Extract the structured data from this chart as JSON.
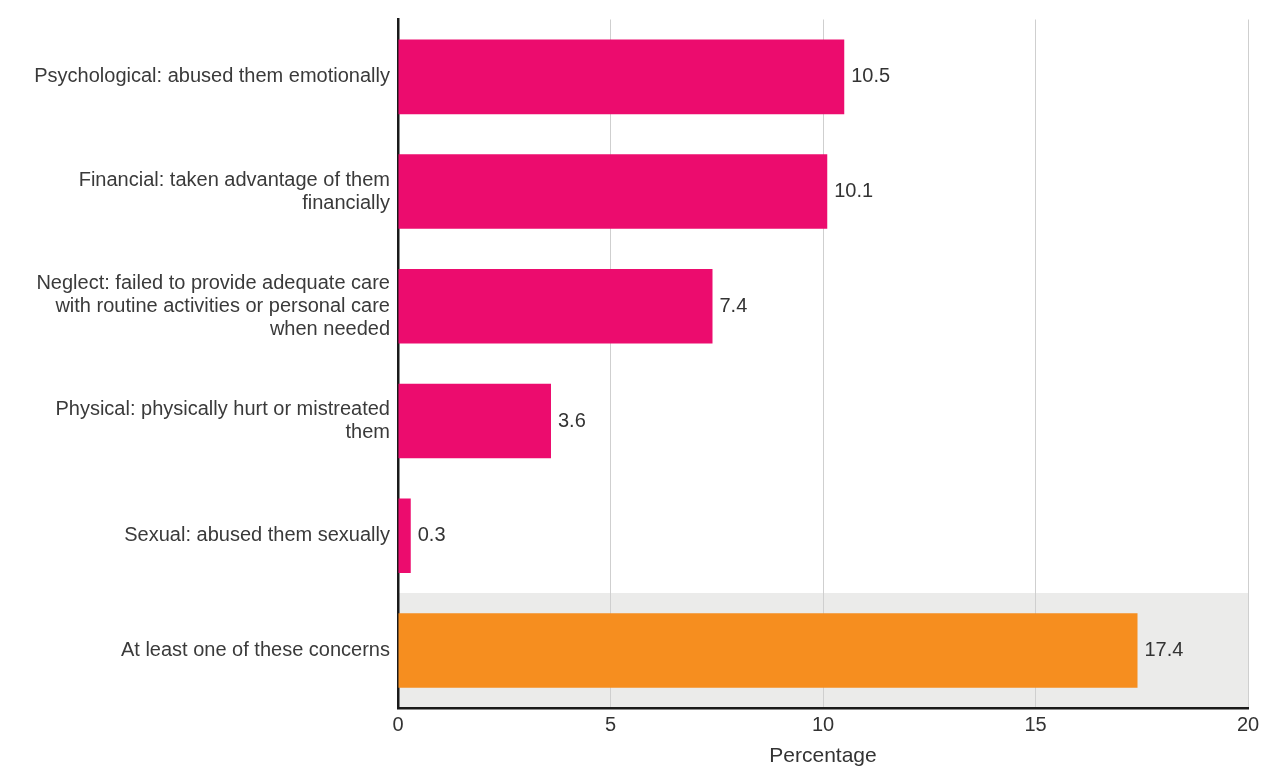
{
  "chart_data": {
    "type": "bar",
    "orientation": "horizontal",
    "categories": [
      "Psychological: abused them emotionally",
      "Financial: taken advantage of them financially",
      "Neglect: failed to provide adequate care with routine activities or personal care when needed",
      "Physical: physically hurt or mistreated them",
      "Sexual: abused them sexually",
      "At least one of these concerns"
    ],
    "values": [
      10.5,
      10.1,
      7.4,
      3.6,
      0.3,
      17.4
    ],
    "colors": [
      "#ec0c6e",
      "#ec0c6e",
      "#ec0c6e",
      "#ec0c6e",
      "#ec0c6e",
      "#f68e1f"
    ],
    "xlabel": "Percentage",
    "xlim": [
      0,
      20
    ],
    "xticks": [
      0,
      5,
      10,
      15,
      20
    ],
    "grid": "x",
    "legend": false,
    "data_labels": true,
    "bands": [
      {
        "axis": "y",
        "from": "At least one of these concerns",
        "to": "At least one of these concerns",
        "color": "#ebebea"
      }
    ]
  }
}
